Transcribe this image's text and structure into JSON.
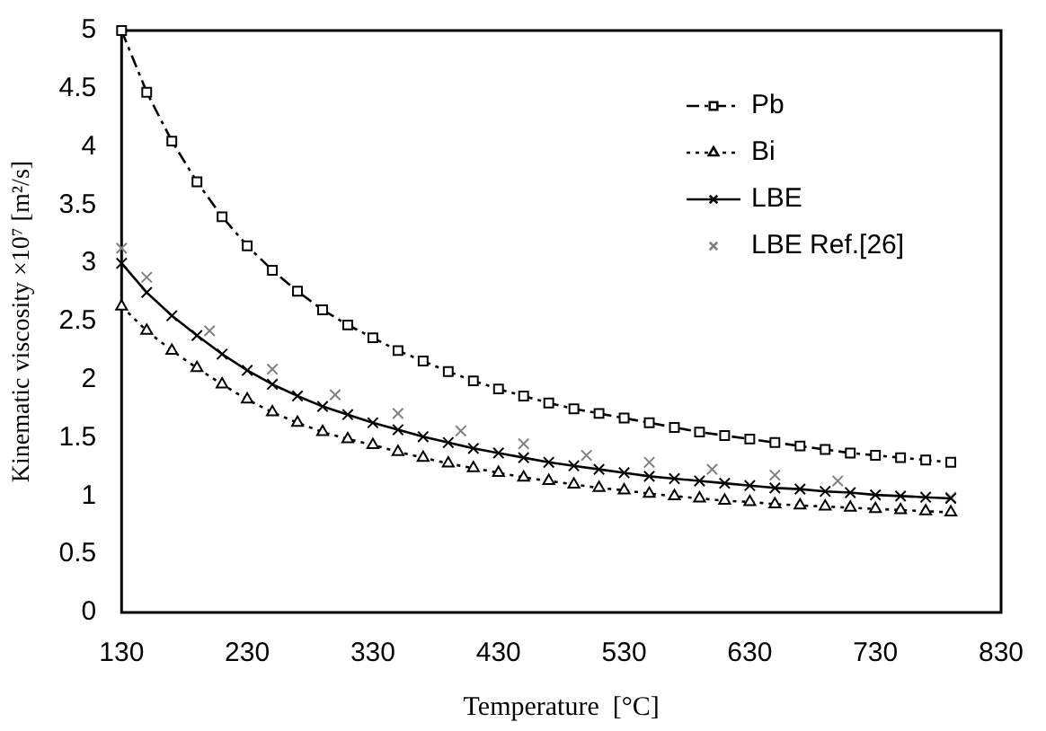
{
  "chart_data": {
    "type": "line",
    "xlabel": "Temperature  [°C]",
    "ylabel": "Kinematic viscosity ×10⁷ [m²/s]",
    "xlim": [
      130,
      830
    ],
    "xticks": [
      130,
      230,
      330,
      430,
      530,
      630,
      730,
      830
    ],
    "ylim": [
      0,
      5
    ],
    "yticks": [
      0,
      {
        "value": 0.5,
        "label": "0.5"
      },
      1,
      {
        "value": 1.5,
        "label": "1.5"
      },
      2,
      {
        "value": 2.5,
        "label": "2.5"
      },
      3,
      {
        "value": 3.5,
        "label": "3.5"
      },
      4,
      {
        "value": 4.5,
        "label": "4.5"
      },
      5
    ],
    "grid": false,
    "legend": "top right",
    "series": [
      {
        "name": "Pb",
        "color": "#000000",
        "marker": "square",
        "line_style": "dashed",
        "x": [
          130,
          150,
          170,
          190,
          210,
          230,
          250,
          270,
          290,
          310,
          330,
          350,
          370,
          390,
          410,
          430,
          450,
          470,
          490,
          510,
          530,
          550,
          570,
          590,
          610,
          630,
          650,
          670,
          690,
          710,
          730,
          750,
          770,
          790
        ],
        "values": [
          5.0,
          4.47,
          4.05,
          3.7,
          3.4,
          3.15,
          2.94,
          2.76,
          2.6,
          2.47,
          2.36,
          2.25,
          2.16,
          2.07,
          1.99,
          1.92,
          1.86,
          1.8,
          1.75,
          1.71,
          1.67,
          1.63,
          1.59,
          1.55,
          1.52,
          1.49,
          1.46,
          1.43,
          1.4,
          1.37,
          1.35,
          1.33,
          1.31,
          1.29
        ]
      },
      {
        "name": "Bi",
        "color": "#000000",
        "marker": "triangle",
        "line_style": "dotted",
        "x": [
          130,
          150,
          170,
          190,
          210,
          230,
          250,
          270,
          290,
          310,
          330,
          350,
          370,
          390,
          410,
          430,
          450,
          470,
          490,
          510,
          530,
          550,
          570,
          590,
          610,
          630,
          650,
          670,
          690,
          710,
          730,
          750,
          770,
          790
        ],
        "values": [
          2.63,
          2.42,
          2.25,
          2.1,
          1.96,
          1.83,
          1.72,
          1.63,
          1.55,
          1.49,
          1.44,
          1.38,
          1.33,
          1.28,
          1.24,
          1.2,
          1.16,
          1.13,
          1.1,
          1.07,
          1.05,
          1.02,
          1.0,
          0.98,
          0.96,
          0.95,
          0.93,
          0.92,
          0.91,
          0.9,
          0.89,
          0.88,
          0.87,
          0.86
        ]
      },
      {
        "name": "LBE",
        "color": "#000000",
        "marker": "cross",
        "line_style": "solid",
        "x": [
          130,
          150,
          170,
          190,
          210,
          230,
          250,
          270,
          290,
          310,
          330,
          350,
          370,
          390,
          410,
          430,
          450,
          470,
          490,
          510,
          530,
          550,
          570,
          590,
          610,
          630,
          650,
          670,
          690,
          710,
          730,
          750,
          770,
          790
        ],
        "values": [
          3.0,
          2.75,
          2.55,
          2.38,
          2.22,
          2.08,
          1.96,
          1.86,
          1.77,
          1.7,
          1.63,
          1.57,
          1.51,
          1.46,
          1.41,
          1.37,
          1.33,
          1.29,
          1.26,
          1.23,
          1.2,
          1.17,
          1.15,
          1.13,
          1.11,
          1.09,
          1.07,
          1.06,
          1.04,
          1.03,
          1.01,
          1.0,
          0.99,
          0.98
        ]
      },
      {
        "name": "LBE Ref.[26]",
        "type": "scatter",
        "color": "#808080",
        "marker": "cross",
        "x": [
          130,
          150,
          200,
          250,
          300,
          350,
          400,
          450,
          500,
          550,
          600,
          650,
          700,
          790
        ],
        "values": [
          3.13,
          2.88,
          2.42,
          2.09,
          1.87,
          1.71,
          1.56,
          1.45,
          1.35,
          1.29,
          1.23,
          1.18,
          1.13,
          0.99
        ]
      }
    ]
  }
}
